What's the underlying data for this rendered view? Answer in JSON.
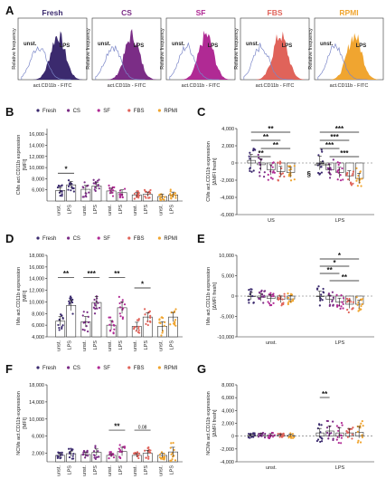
{
  "colors": {
    "Fresh": "#3b2a6e",
    "CS": "#7b2d86",
    "SF": "#b02a94",
    "FBS": "#e0635a",
    "RPMI": "#f0a530"
  },
  "panel_labels": [
    "A",
    "B",
    "C",
    "D",
    "E",
    "F",
    "G"
  ],
  "legend_items": [
    "Fresh",
    "CS",
    "SF",
    "FBS",
    "RPMI"
  ],
  "chart_data": [
    {
      "panel": "A",
      "type": "area",
      "histograms": [
        {
          "title": "Fresh",
          "xlabel": "act.CD11b - FITC",
          "ylabel": "Relative frequency",
          "labels": [
            "unst.",
            "LPS"
          ]
        },
        {
          "title": "CS",
          "xlabel": "act.CD11b - FITC",
          "ylabel": "Relative frequency",
          "labels": [
            "unst.",
            "LPS"
          ]
        },
        {
          "title": "SF",
          "xlabel": "act.CD11b - FITC",
          "ylabel": "Relative frequency",
          "labels": [
            "unst.",
            "LPS"
          ]
        },
        {
          "title": "FBS",
          "xlabel": "act.CD11b - FITC",
          "ylabel": "Relative frequency",
          "labels": [
            "unst.",
            "LPS"
          ]
        },
        {
          "title": "RPMI",
          "xlabel": "act.CD11b - FITC",
          "ylabel": "Relative frequency",
          "labels": [
            "unst.",
            "LPS"
          ]
        }
      ]
    },
    {
      "panel": "B",
      "type": "bar",
      "ylabel_lines": [
        "CMs act.CD11b expression",
        "[MFI]"
      ],
      "yticks": [
        "6,000",
        "8,000",
        "10,000",
        "12,000",
        "14,000",
        "16,000"
      ],
      "ylim": [
        4000,
        17000
      ],
      "categories": [
        "unst.",
        "LPS",
        "unst.",
        "LPS",
        "unst.",
        "LPS",
        "unst.",
        "LPS",
        "unst.",
        "LPS"
      ],
      "series_of_category": [
        "Fresh",
        "Fresh",
        "CS",
        "CS",
        "SF",
        "SF",
        "FBS",
        "FBS",
        "RPMI",
        "RPMI"
      ],
      "values": [
        5900,
        6900,
        6100,
        6700,
        5800,
        5500,
        5100,
        5200,
        4800,
        5100
      ],
      "errors": [
        500,
        600,
        700,
        600,
        500,
        500,
        400,
        400,
        400,
        500
      ],
      "significance": [
        {
          "text": "*",
          "from": 0,
          "to": 1,
          "y": 9000
        }
      ]
    },
    {
      "panel": "C",
      "type": "bar",
      "ylabel_lines": [
        "CMs act.CD11b expression",
        "[ΔMFI fresh]"
      ],
      "yticks": [
        "-6,000",
        "-4,000",
        "-2,000",
        "0",
        "2,000",
        "4,000"
      ],
      "ylim": [
        -6000,
        4000
      ],
      "groups": [
        "US",
        "LPS"
      ],
      "series_order": [
        "Fresh",
        "CS",
        "SF",
        "FBS",
        "RPMI"
      ],
      "values": [
        [
          300,
          -200,
          -800,
          -1000,
          -1100
        ],
        [
          0,
          -800,
          -1100,
          -1500,
          -1800
        ]
      ],
      "errors": [
        [
          700,
          700,
          600,
          600,
          600
        ],
        [
          800,
          600,
          600,
          600,
          600
        ]
      ],
      "annotations": [
        "**",
        "**",
        "**",
        "**",
        "***",
        "***",
        "***",
        "***",
        "ns",
        "§"
      ]
    },
    {
      "panel": "D",
      "type": "bar",
      "ylabel_lines": [
        "IMs act.CD11b expression",
        "[MFI]"
      ],
      "yticks": [
        "4,000",
        "6,000",
        "8,000",
        "10,000",
        "12,000",
        "14,000",
        "16,000",
        "18,000"
      ],
      "ylim": [
        4000,
        18000
      ],
      "categories": [
        "unst.",
        "LPS",
        "unst.",
        "LPS",
        "unst.",
        "LPS",
        "unst.",
        "LPS",
        "unst.",
        "LPS"
      ],
      "series_of_category": [
        "Fresh",
        "Fresh",
        "CS",
        "CS",
        "SF",
        "SF",
        "FBS",
        "FBS",
        "RPMI",
        "RPMI"
      ],
      "values": [
        6700,
        9400,
        6600,
        9900,
        6000,
        9000,
        5800,
        7400,
        5800,
        7400
      ],
      "errors": [
        800,
        900,
        900,
        1000,
        800,
        1000,
        700,
        700,
        800,
        800
      ],
      "significance": [
        {
          "text": "**",
          "from": 0,
          "to": 1,
          "y": 14200
        },
        {
          "text": "***",
          "from": 2,
          "to": 3,
          "y": 14200
        },
        {
          "text": "**",
          "from": 4,
          "to": 5,
          "y": 14200
        },
        {
          "text": "*",
          "from": 6,
          "to": 7,
          "y": 12400
        }
      ]
    },
    {
      "panel": "E",
      "type": "bar",
      "ylabel_lines": [
        "IMs act.CD11b expression",
        "[ΔMFI fresh]"
      ],
      "yticks": [
        "-10,000",
        "-5,000",
        "0",
        "5,000",
        "10,000"
      ],
      "ylim": [
        -10000,
        10000
      ],
      "groups": [
        "unst.",
        "LPS"
      ],
      "series_order": [
        "Fresh",
        "CS",
        "SF",
        "FBS",
        "RPMI"
      ],
      "values": [
        [
          0,
          -300,
          -600,
          -800,
          -700
        ],
        [
          0,
          -800,
          -1500,
          -2000,
          -2000
        ]
      ],
      "errors": [
        [
          900,
          900,
          900,
          800,
          800
        ],
        [
          1200,
          1000,
          1000,
          1000,
          1000
        ]
      ],
      "annotations": [
        "*",
        "*",
        "**",
        "**"
      ]
    },
    {
      "panel": "F",
      "type": "bar",
      "ylabel_lines": [
        "NCMs act.CD11b expression",
        "[MFI]"
      ],
      "yticks": [
        "2,000",
        "6,000",
        "10,000",
        "14,000",
        "18,000"
      ],
      "ylim": [
        0,
        18000
      ],
      "categories": [
        "unst.",
        "LPS",
        "unst.",
        "LPS",
        "unst.",
        "LPS",
        "unst.",
        "LPS",
        "unst.",
        "LPS"
      ],
      "series_of_category": [
        "Fresh",
        "Fresh",
        "CS",
        "CS",
        "SF",
        "SF",
        "FBS",
        "FBS",
        "RPMI",
        "RPMI"
      ],
      "values": [
        1500,
        1900,
        1700,
        2200,
        1500,
        2400,
        1500,
        2000,
        1500,
        2300
      ],
      "errors": [
        400,
        600,
        500,
        800,
        400,
        1000,
        400,
        700,
        500,
        1100
      ],
      "significance": [
        {
          "text": "**",
          "from": 4,
          "to": 5,
          "y": 7400
        },
        {
          "text": "0.08",
          "from": 6,
          "to": 7,
          "y": 7400
        }
      ]
    },
    {
      "panel": "G",
      "type": "bar",
      "ylabel_lines": [
        "NCMs act.CD11b expression",
        "[ΔMFI fresh]"
      ],
      "yticks": [
        "-4,000",
        "-2,000",
        "0",
        "2,000",
        "4,000",
        "6,000",
        "8,000"
      ],
      "ylim": [
        -4000,
        8000
      ],
      "groups": [
        "unst.",
        "LPS"
      ],
      "series_order": [
        "Fresh",
        "CS",
        "SF",
        "FBS",
        "RPMI"
      ],
      "values": [
        [
          100,
          200,
          150,
          150,
          100
        ],
        [
          500,
          800,
          500,
          500,
          600
        ]
      ],
      "errors": [
        [
          200,
          250,
          250,
          200,
          200
        ],
        [
          700,
          800,
          800,
          700,
          900
        ]
      ],
      "annotations": [
        "**"
      ]
    }
  ]
}
